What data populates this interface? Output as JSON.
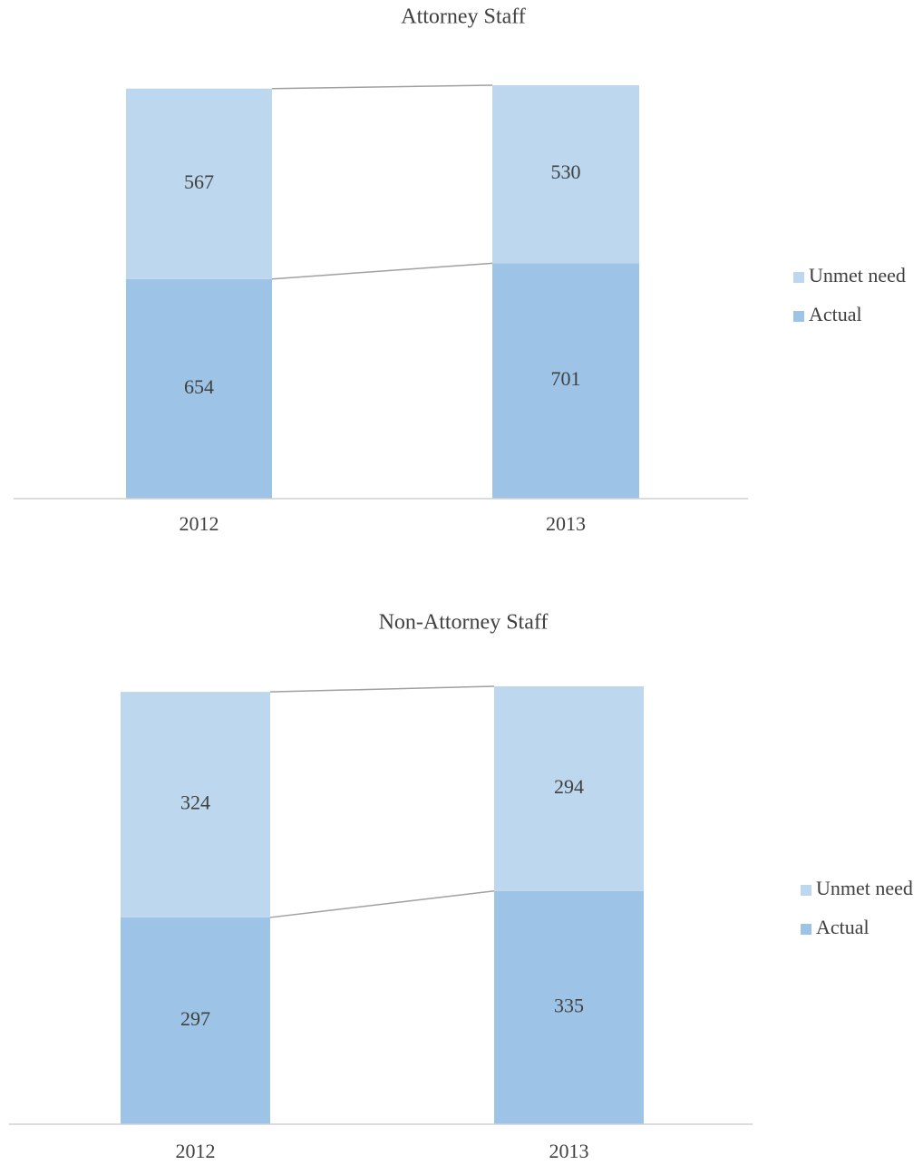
{
  "chart_data": [
    {
      "type": "stacked_bar",
      "title": "Attorney Staff",
      "categories": [
        "2012",
        "2013"
      ],
      "series": [
        {
          "name": "Actual",
          "color": "#9dc3e6",
          "values": [
            654,
            701
          ]
        },
        {
          "name": "Unmet need",
          "color": "#bdd7ee",
          "values": [
            567,
            530
          ]
        }
      ],
      "legend": "right"
    },
    {
      "type": "stacked_bar",
      "title": "Non-Attorney Staff",
      "categories": [
        "2012",
        "2013"
      ],
      "series": [
        {
          "name": "Actual",
          "color": "#9dc3e6",
          "values": [
            297,
            335
          ]
        },
        {
          "name": "Unmet need",
          "color": "#bdd7ee",
          "values": [
            324,
            294
          ]
        }
      ],
      "legend": "right"
    }
  ]
}
